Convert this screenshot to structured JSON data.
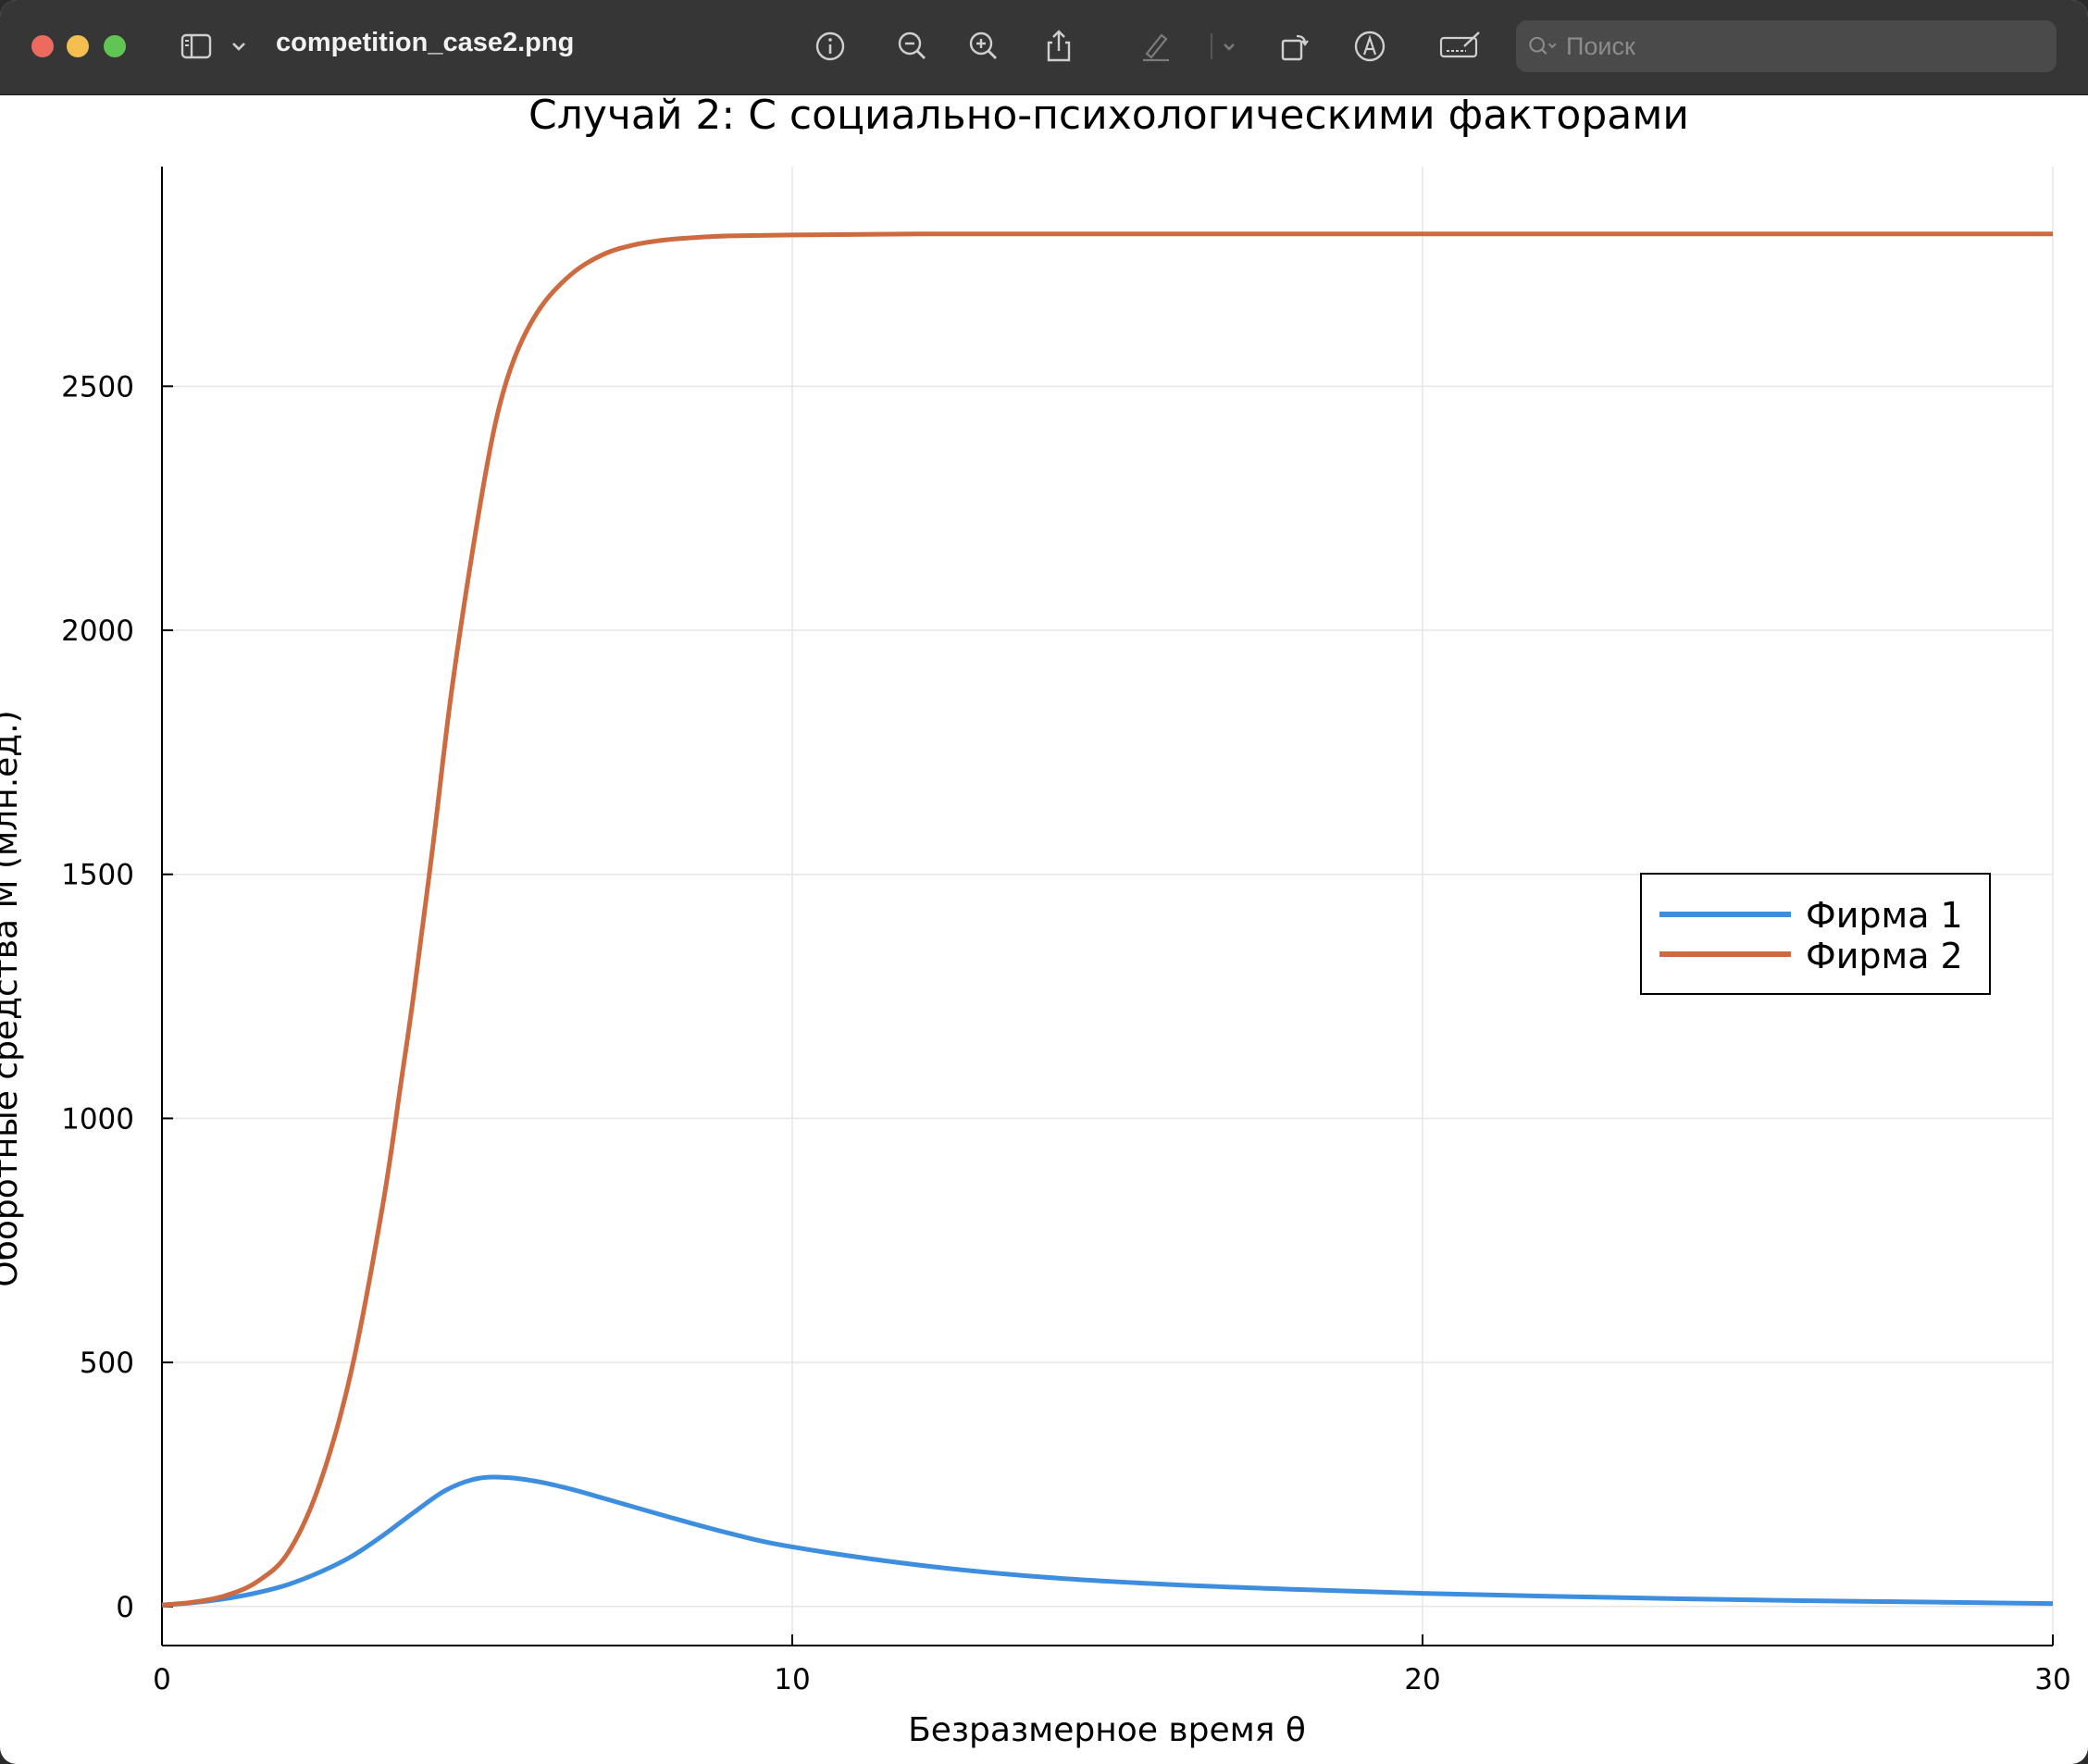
{
  "window": {
    "file_name": "competition_case2.png",
    "search_placeholder": "Поиск",
    "colors": {
      "close": "#ed6a5e",
      "minimize": "#f4bf4f",
      "zoom": "#61c554",
      "titlebar": "#363636"
    },
    "toolbar_icons": [
      "sidebar-icon",
      "chevron-down-icon",
      "info-icon",
      "zoom-out-icon",
      "zoom-in-icon",
      "share-icon",
      "highlight-pen-icon",
      "chevron-down-icon",
      "rotate-icon",
      "markup-icon",
      "signature-icon",
      "search-icon"
    ]
  },
  "chart_data": {
    "type": "line",
    "title": "Случай 2: С социально-психологическими факторами",
    "xlabel": "Безразмерное время θ",
    "ylabel": "Оборотные средства M (млн.ед.)",
    "xlim": [
      0,
      30
    ],
    "ylim": [
      -80,
      2950
    ],
    "xticks": [
      0,
      10,
      20,
      30
    ],
    "yticks": [
      0,
      500,
      1000,
      1500,
      2000,
      2500
    ],
    "grid": true,
    "legend_position": "right",
    "series": [
      {
        "name": "Фирма 1",
        "color": "#3e8edf",
        "x": [
          0,
          0.5,
          1,
          1.5,
          2,
          2.5,
          3,
          3.5,
          4,
          4.5,
          5,
          5.5,
          6,
          6.5,
          7,
          8,
          9,
          10,
          12,
          14,
          16,
          18,
          20,
          22,
          24,
          26,
          28,
          30
        ],
        "y": [
          3,
          8,
          16,
          28,
          45,
          70,
          102,
          145,
          193,
          238,
          262,
          264,
          255,
          240,
          222,
          185,
          150,
          122,
          85,
          60,
          45,
          35,
          27,
          21,
          16,
          12,
          9,
          6
        ]
      },
      {
        "name": "Фирма 2",
        "color": "#cd6a40",
        "x": [
          0,
          0.5,
          1,
          1.5,
          2,
          2.5,
          3,
          3.5,
          3.8,
          4,
          4.3,
          4.6,
          5,
          5.3,
          5.6,
          6,
          6.5,
          7,
          7.5,
          8,
          8.5,
          9,
          10,
          12,
          15,
          20,
          25,
          30
        ],
        "y": [
          3,
          9,
          22,
          50,
          110,
          250,
          480,
          820,
          1080,
          1260,
          1560,
          1880,
          2220,
          2430,
          2560,
          2660,
          2730,
          2770,
          2790,
          2800,
          2805,
          2808,
          2810,
          2812,
          2812,
          2812,
          2812,
          2812
        ]
      }
    ]
  }
}
